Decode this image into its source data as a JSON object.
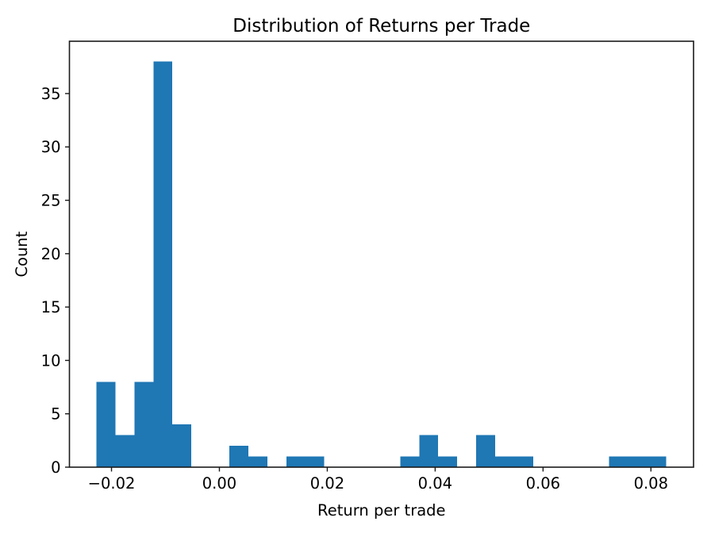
{
  "figure": {
    "background": "#ffffff",
    "spine_color": "#1a1a1a",
    "tick_color": "#1a1a1a",
    "text_color": "#000000"
  },
  "chart_data": {
    "type": "bar",
    "subtype": "histogram",
    "title": "Distribution of Returns per Trade",
    "xlabel": "Return per trade",
    "ylabel": "Count",
    "bar_color": "#1f77b4",
    "grid": false,
    "legend": null,
    "bins": {
      "start": -0.0228,
      "width": 0.00352,
      "count": 30
    },
    "bin_edges_approx": [
      -0.0228,
      -0.0193,
      -0.0158,
      -0.0122,
      -0.0087,
      -0.0052,
      -0.0017,
      0.0018,
      0.0054,
      0.0089,
      0.0124,
      0.0159,
      0.0194,
      0.023,
      0.0265,
      0.03,
      0.0335,
      0.037,
      0.0406,
      0.0441,
      0.0476,
      0.0511,
      0.0546,
      0.0582,
      0.0617,
      0.0652,
      0.0687,
      0.0722,
      0.0758,
      0.0793,
      0.0828
    ],
    "counts": [
      8,
      3,
      8,
      38,
      4,
      0,
      0,
      2,
      1,
      0,
      1,
      1,
      0,
      0,
      0,
      0,
      1,
      3,
      1,
      0,
      3,
      1,
      1,
      0,
      0,
      0,
      0,
      1,
      1,
      1
    ],
    "xlim": [
      -0.0278,
      0.0879
    ],
    "ylim": [
      0,
      39.9
    ],
    "xticks": [
      -0.02,
      0.0,
      0.02,
      0.04,
      0.06,
      0.08
    ],
    "xtick_labels": [
      "−0.02",
      "0.00",
      "0.02",
      "0.04",
      "0.06",
      "0.08"
    ],
    "yticks": [
      0,
      5,
      10,
      15,
      20,
      25,
      30,
      35
    ],
    "ytick_labels": [
      "0",
      "5",
      "10",
      "15",
      "20",
      "25",
      "30",
      "35"
    ]
  }
}
